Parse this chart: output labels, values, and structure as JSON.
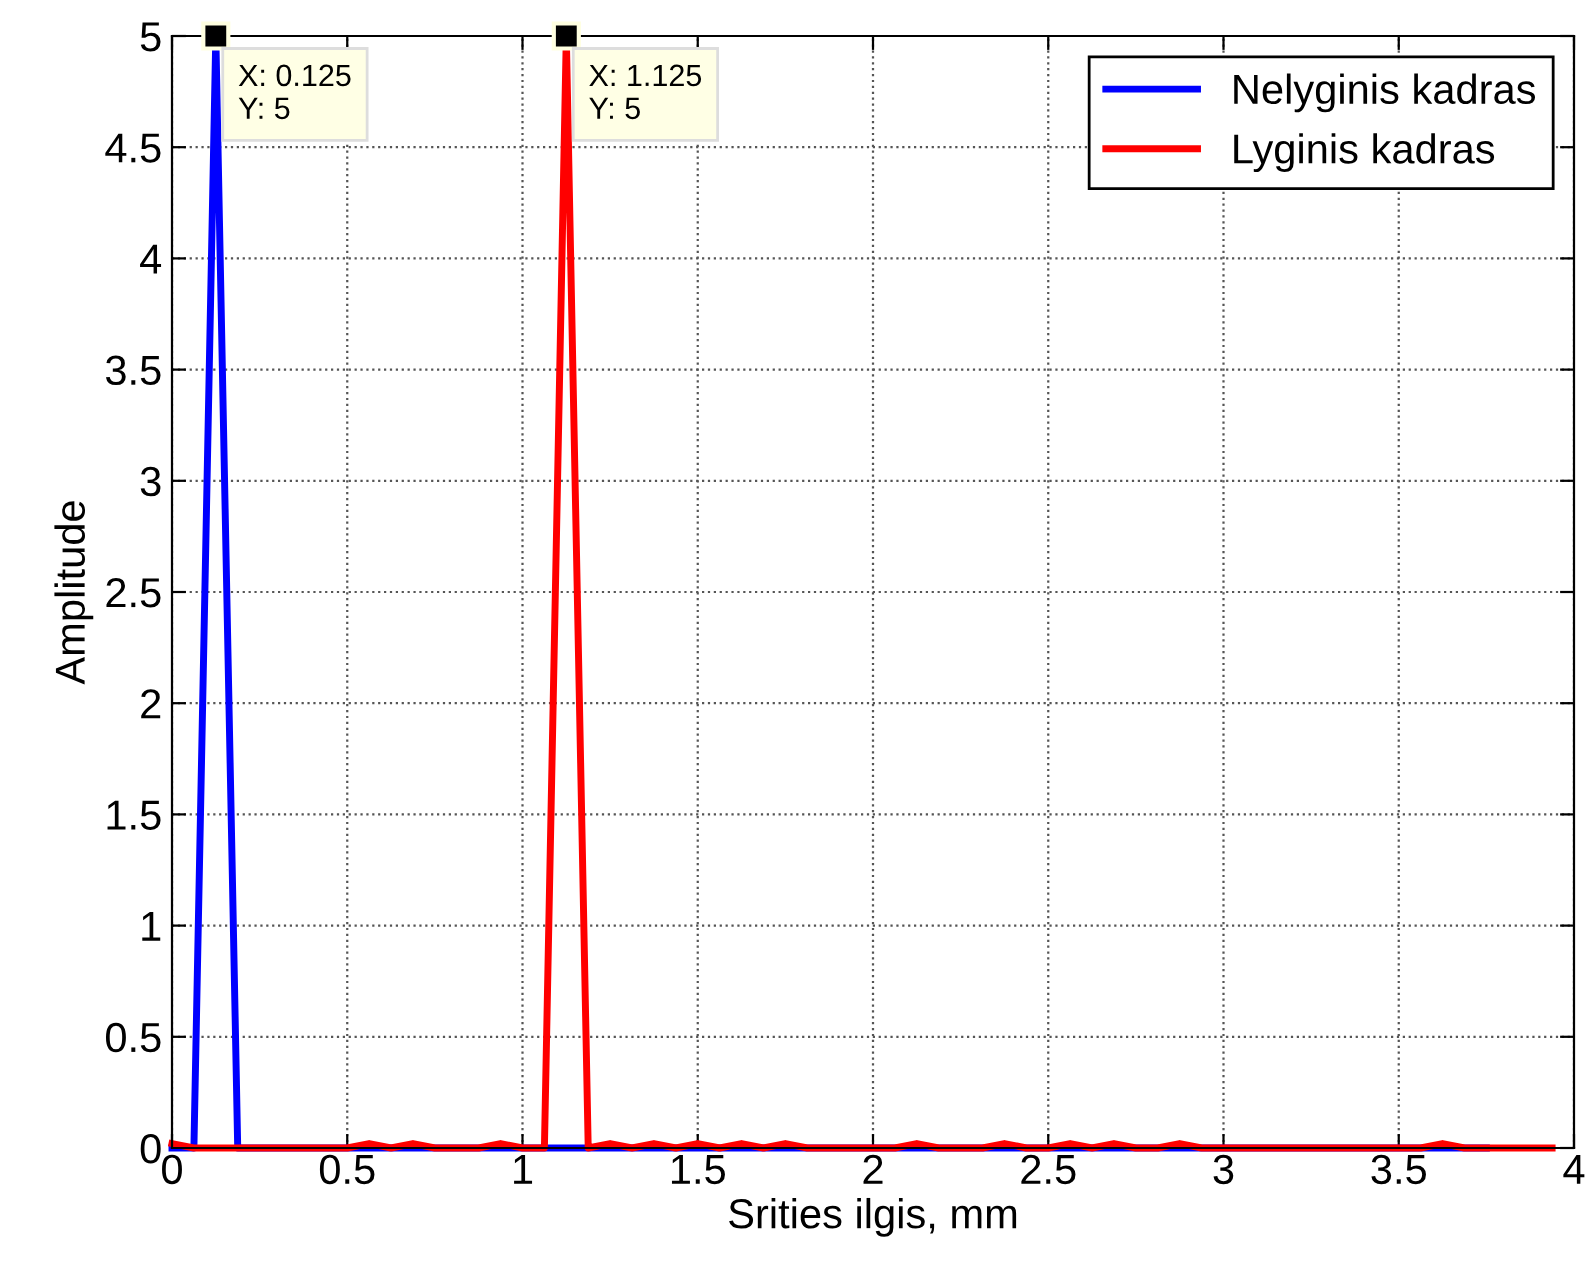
{
  "chart_data": {
    "type": "line",
    "xlabel": "Srities ilgis, mm",
    "ylabel": "Amplitude",
    "x": [
      0,
      0.0625,
      0.125,
      0.1875,
      0.25,
      0.3125,
      0.375,
      0.4375,
      0.5,
      0.5625,
      0.625,
      0.6875,
      0.75,
      0.8125,
      0.875,
      0.9375,
      1,
      1.0625,
      1.125,
      1.1875,
      1.25,
      1.3125,
      1.375,
      1.4375,
      1.5,
      1.5625,
      1.625,
      1.6875,
      1.75,
      1.8125,
      1.875,
      1.9375,
      2,
      2.0625,
      2.125,
      2.1875,
      2.25,
      2.3125,
      2.375,
      2.4375,
      2.5,
      2.5625,
      2.625,
      2.6875,
      2.75,
      2.8125,
      2.875,
      2.9375,
      3,
      3.0625,
      3.125,
      3.1875,
      3.25,
      3.3125,
      3.375,
      3.4375,
      3.5,
      3.5625,
      3.625,
      3.6875,
      3.75,
      3.8125,
      3.875,
      3.9375
    ],
    "series": [
      {
        "name": "Nelyginis kadras",
        "color": "#0000ff",
        "values": [
          0,
          0,
          5,
          0,
          0,
          0,
          0,
          0,
          0,
          0,
          0,
          0,
          0,
          0,
          0,
          0,
          0,
          0,
          0,
          0,
          0,
          0,
          0,
          0,
          0,
          0,
          0,
          0,
          0,
          0,
          0,
          0,
          0,
          0,
          0,
          0,
          0,
          0,
          0,
          0,
          0,
          0,
          0,
          0,
          0,
          0,
          0,
          0,
          0,
          0,
          0,
          0,
          0,
          0,
          0,
          0,
          0,
          0,
          0,
          0,
          0,
          null,
          null,
          null
        ]
      },
      {
        "name": "Lyginis kadras",
        "color": "#ff0000",
        "values": [
          0.02,
          0,
          0,
          0,
          0,
          0,
          0,
          0,
          0,
          0.02,
          0,
          0.02,
          0,
          0,
          0,
          0.02,
          0,
          0,
          5,
          0,
          0.02,
          0,
          0.02,
          0,
          0.02,
          0,
          0.02,
          0,
          0.02,
          0,
          0,
          0,
          0,
          0,
          0.02,
          0,
          0,
          0,
          0.02,
          0,
          0,
          0.02,
          0,
          0.02,
          0,
          0,
          0.02,
          0,
          0,
          0,
          0,
          0,
          0,
          0,
          0,
          0,
          0,
          0,
          0.02,
          0,
          0,
          0,
          0,
          0
        ]
      }
    ],
    "xlim": [
      0,
      4
    ],
    "ylim": [
      0,
      5
    ],
    "xticks": [
      0,
      0.5,
      1,
      1.5,
      2,
      2.5,
      3,
      3.5,
      4
    ],
    "yticks": [
      0,
      0.5,
      1,
      1.5,
      2,
      2.5,
      3,
      3.5,
      4,
      4.5,
      5
    ],
    "annotations": [
      {
        "text": "X: 0.125\nY: 5",
        "x": 0.125,
        "y": 5
      },
      {
        "text": "X: 1.125\nY: 5",
        "x": 1.125,
        "y": 5
      }
    ],
    "grid": true,
    "legend": "top right",
    "line_style": "solid",
    "marker": "none"
  }
}
